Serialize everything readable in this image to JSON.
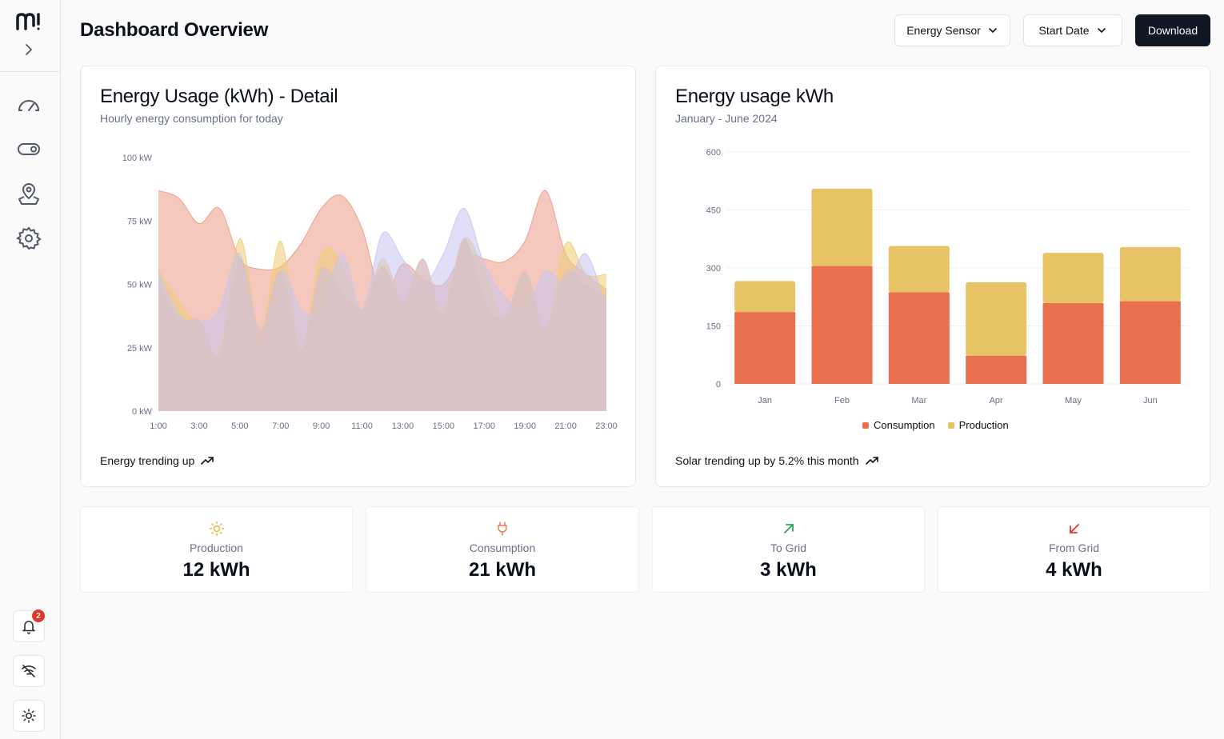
{
  "page": {
    "title": "Dashboard Overview"
  },
  "sidebar": {
    "logo": "logo-icon",
    "nav": [
      {
        "name": "dashboard-icon",
        "label": "dashboard"
      },
      {
        "name": "toggle-icon",
        "label": "devices"
      },
      {
        "name": "map-pin-icon",
        "label": "locations"
      },
      {
        "name": "gear-icon",
        "label": "settings"
      }
    ],
    "notifications_count": "2"
  },
  "toolbar": {
    "sensor_label": "Energy Sensor",
    "date_label": "Start Date",
    "download_label": "Download"
  },
  "area_card": {
    "title": "Energy Usage (kWh) - Detail",
    "subtitle": "Hourly energy consumption for today",
    "footer": "Energy trending up"
  },
  "bar_card": {
    "title": "Energy usage kWh",
    "subtitle": "January - June 2024",
    "footer": "Solar trending up by 5.2% this month"
  },
  "stats": [
    {
      "label": "Production",
      "value": "12 kWh",
      "icon": "sun-icon",
      "color": "#e8b44a"
    },
    {
      "label": "Consumption",
      "value": "21 kWh",
      "icon": "plug-icon",
      "color": "#e87d5e"
    },
    {
      "label": "To Grid",
      "value": "3 kWh",
      "icon": "arrow-up-right-icon",
      "color": "#2f9e59"
    },
    {
      "label": "From Grid",
      "value": "4 kWh",
      "icon": "arrow-down-left-icon",
      "color": "#e5342a"
    }
  ],
  "chart_data": [
    {
      "type": "area",
      "x": [
        1,
        2,
        3,
        4,
        5,
        6,
        7,
        8,
        9,
        10,
        11,
        12,
        13,
        14,
        15,
        16,
        17,
        18,
        19,
        20,
        21,
        22,
        23
      ],
      "x_ticks": [
        "1:00",
        "3:00",
        "5:00",
        "7:00",
        "9:00",
        "11:00",
        "13:00",
        "15:00",
        "17:00",
        "19:00",
        "21:00",
        "23:00"
      ],
      "y_ticks": [
        "0 kW",
        "25 kW",
        "50 kW",
        "75 kW",
        "100 kW"
      ],
      "ylim": [
        0,
        100
      ],
      "series": [
        {
          "color": "#eb9a85",
          "values": [
            87,
            84,
            74,
            80,
            60,
            56,
            57,
            66,
            80,
            85,
            72,
            45,
            58,
            52,
            50,
            62,
            60,
            59,
            67,
            87,
            62,
            54,
            48
          ]
        },
        {
          "color": "#f1cc72",
          "values": [
            56,
            43,
            33,
            23,
            68,
            30,
            67,
            24,
            62,
            58,
            38,
            60,
            42,
            43,
            40,
            68,
            55,
            36,
            55,
            30,
            66,
            54,
            54
          ]
        },
        {
          "color": "#c9c4f1",
          "values": [
            55,
            38,
            35,
            40,
            62,
            23,
            55,
            40,
            40,
            62,
            40,
            70,
            60,
            50,
            62,
            80,
            58,
            45,
            40,
            55,
            50,
            62,
            40
          ]
        },
        {
          "color": "#d9c2c6",
          "values": [
            50,
            36,
            36,
            22,
            60,
            32,
            55,
            24,
            56,
            47,
            40,
            57,
            43,
            60,
            38,
            68,
            44,
            37,
            55,
            33,
            55,
            50,
            45
          ]
        }
      ]
    },
    {
      "type": "bar",
      "stacked": true,
      "categories": [
        "Jan",
        "Feb",
        "Mar",
        "Apr",
        "May",
        "Jun"
      ],
      "ylim": [
        0,
        600
      ],
      "y_ticks": [
        "0",
        "150",
        "300",
        "450",
        "600"
      ],
      "series": [
        {
          "name": "Consumption",
          "color": "#e8704f",
          "values": [
            186,
            305,
            237,
            73,
            209,
            214
          ]
        },
        {
          "name": "Production",
          "color": "#e6c466",
          "values": [
            80,
            200,
            120,
            190,
            130,
            140
          ]
        }
      ],
      "legend": "bottom-center"
    }
  ]
}
